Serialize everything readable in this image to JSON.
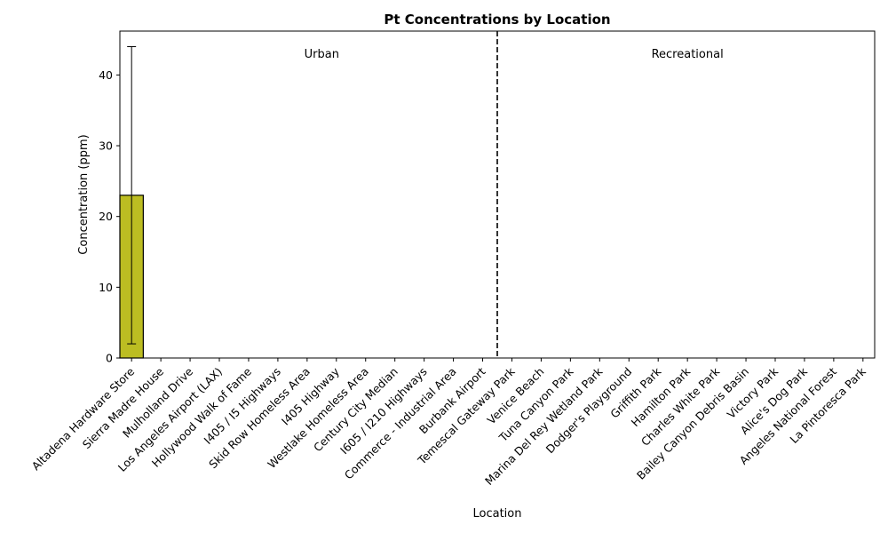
{
  "chart_data": {
    "type": "bar",
    "title": "Pt Concentrations by Location",
    "xlabel": "Location",
    "ylabel": "Concentration (ppm)",
    "categories": [
      "Altadena Hardware Store",
      "Sierra Madre House",
      "Mulholland Drive",
      "Los Angeles Airport (LAX)",
      "Hollywood Walk of Fame",
      "I405 / I5 Highways",
      "Skid Row Homeless Area",
      "I405 Highway",
      "Westlake Homeless Area",
      "Century City Median",
      "I605 / I210 Highways",
      "Commerce - Industrial Area",
      "Burbank Airport",
      "Temescal Gateway Park",
      "Venice Beach",
      "Tuna Canyon Park",
      "Marina Del Rey Wetland Park",
      "Dodger's Playground",
      "Griffith Park",
      "Hamilton Park",
      "Charles White Park",
      "Bailey Canyon Debris Basin",
      "Victory Park",
      "Alice's Dog Park",
      "Angeles National Forest",
      "La Pintoresca Park"
    ],
    "values": [
      23,
      null,
      null,
      null,
      null,
      null,
      null,
      null,
      null,
      null,
      null,
      null,
      null,
      null,
      null,
      null,
      null,
      null,
      null,
      null,
      null,
      null,
      null,
      null,
      null,
      null
    ],
    "error_low": [
      2,
      null,
      null,
      null,
      null,
      null,
      null,
      null,
      null,
      null,
      null,
      null,
      null,
      null,
      null,
      null,
      null,
      null,
      null,
      null,
      null,
      null,
      null,
      null,
      null,
      null
    ],
    "error_high": [
      44,
      null,
      null,
      null,
      null,
      null,
      null,
      null,
      null,
      null,
      null,
      null,
      null,
      null,
      null,
      null,
      null,
      null,
      null,
      null,
      null,
      null,
      null,
      null,
      null,
      null
    ],
    "bar_color": "#bcbd22",
    "edge_color": "#000000",
    "ylim": [
      0,
      46.2
    ],
    "yticks": [
      0,
      10,
      20,
      30,
      40
    ],
    "xlim": [
      -0.4,
      25.4
    ],
    "divider_after_index": 12.5,
    "group_labels": [
      {
        "text": "Urban",
        "x": 6.5
      },
      {
        "text": "Recreational",
        "x": 19
      }
    ],
    "grid": false
  }
}
